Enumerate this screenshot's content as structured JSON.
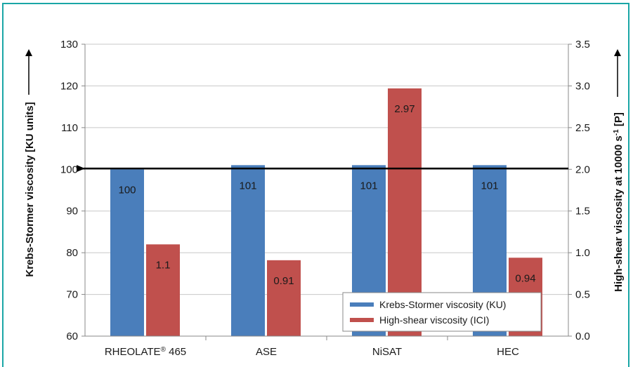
{
  "chart_data": {
    "type": "bar",
    "categories": [
      "RHEOLATE",
      "ASE",
      "NiSAT",
      "HEC"
    ],
    "category_superscripts": [
      "®",
      "",
      "",
      ""
    ],
    "category_suffixes": [
      " 465",
      "",
      "",
      ""
    ],
    "series": [
      {
        "name": "Krebs-Stormer viscosity (KU)",
        "axis": "left",
        "color": "#4a7ebb",
        "values": [
          100,
          101,
          101,
          101
        ],
        "labels": [
          "100",
          "101",
          "101",
          "101"
        ]
      },
      {
        "name": "High-shear viscosity (ICI)",
        "axis": "right",
        "color": "#c0504d",
        "values": [
          1.1,
          0.91,
          2.97,
          0.94
        ],
        "labels": [
          "1.1",
          "0.91",
          "2.97",
          "0.94"
        ]
      }
    ],
    "ylabel_left": "Krebs-Stormer viscosity  [KU units]",
    "ylabel_right_prefix": "High-shear viscosity at 10000 s",
    "ylabel_right_sup": "-1",
    "ylabel_right_suffix": " [P]",
    "ylim_left": [
      60,
      130
    ],
    "yticks_left": [
      "60",
      "70",
      "80",
      "90",
      "100",
      "110",
      "120",
      "130"
    ],
    "ylim_right": [
      0.0,
      3.5
    ],
    "yticks_right": [
      "0.0",
      "0.5",
      "1.0",
      "1.5",
      "2.0",
      "2.5",
      "3.0",
      "3.5"
    ],
    "reference_line": {
      "axis": "left",
      "value": 100.2
    },
    "grid": true,
    "legend_position": "bottom-right"
  },
  "colors": {
    "frame": "#1aa6a6",
    "grid": "#c8c8c8",
    "axis": "#888888"
  }
}
